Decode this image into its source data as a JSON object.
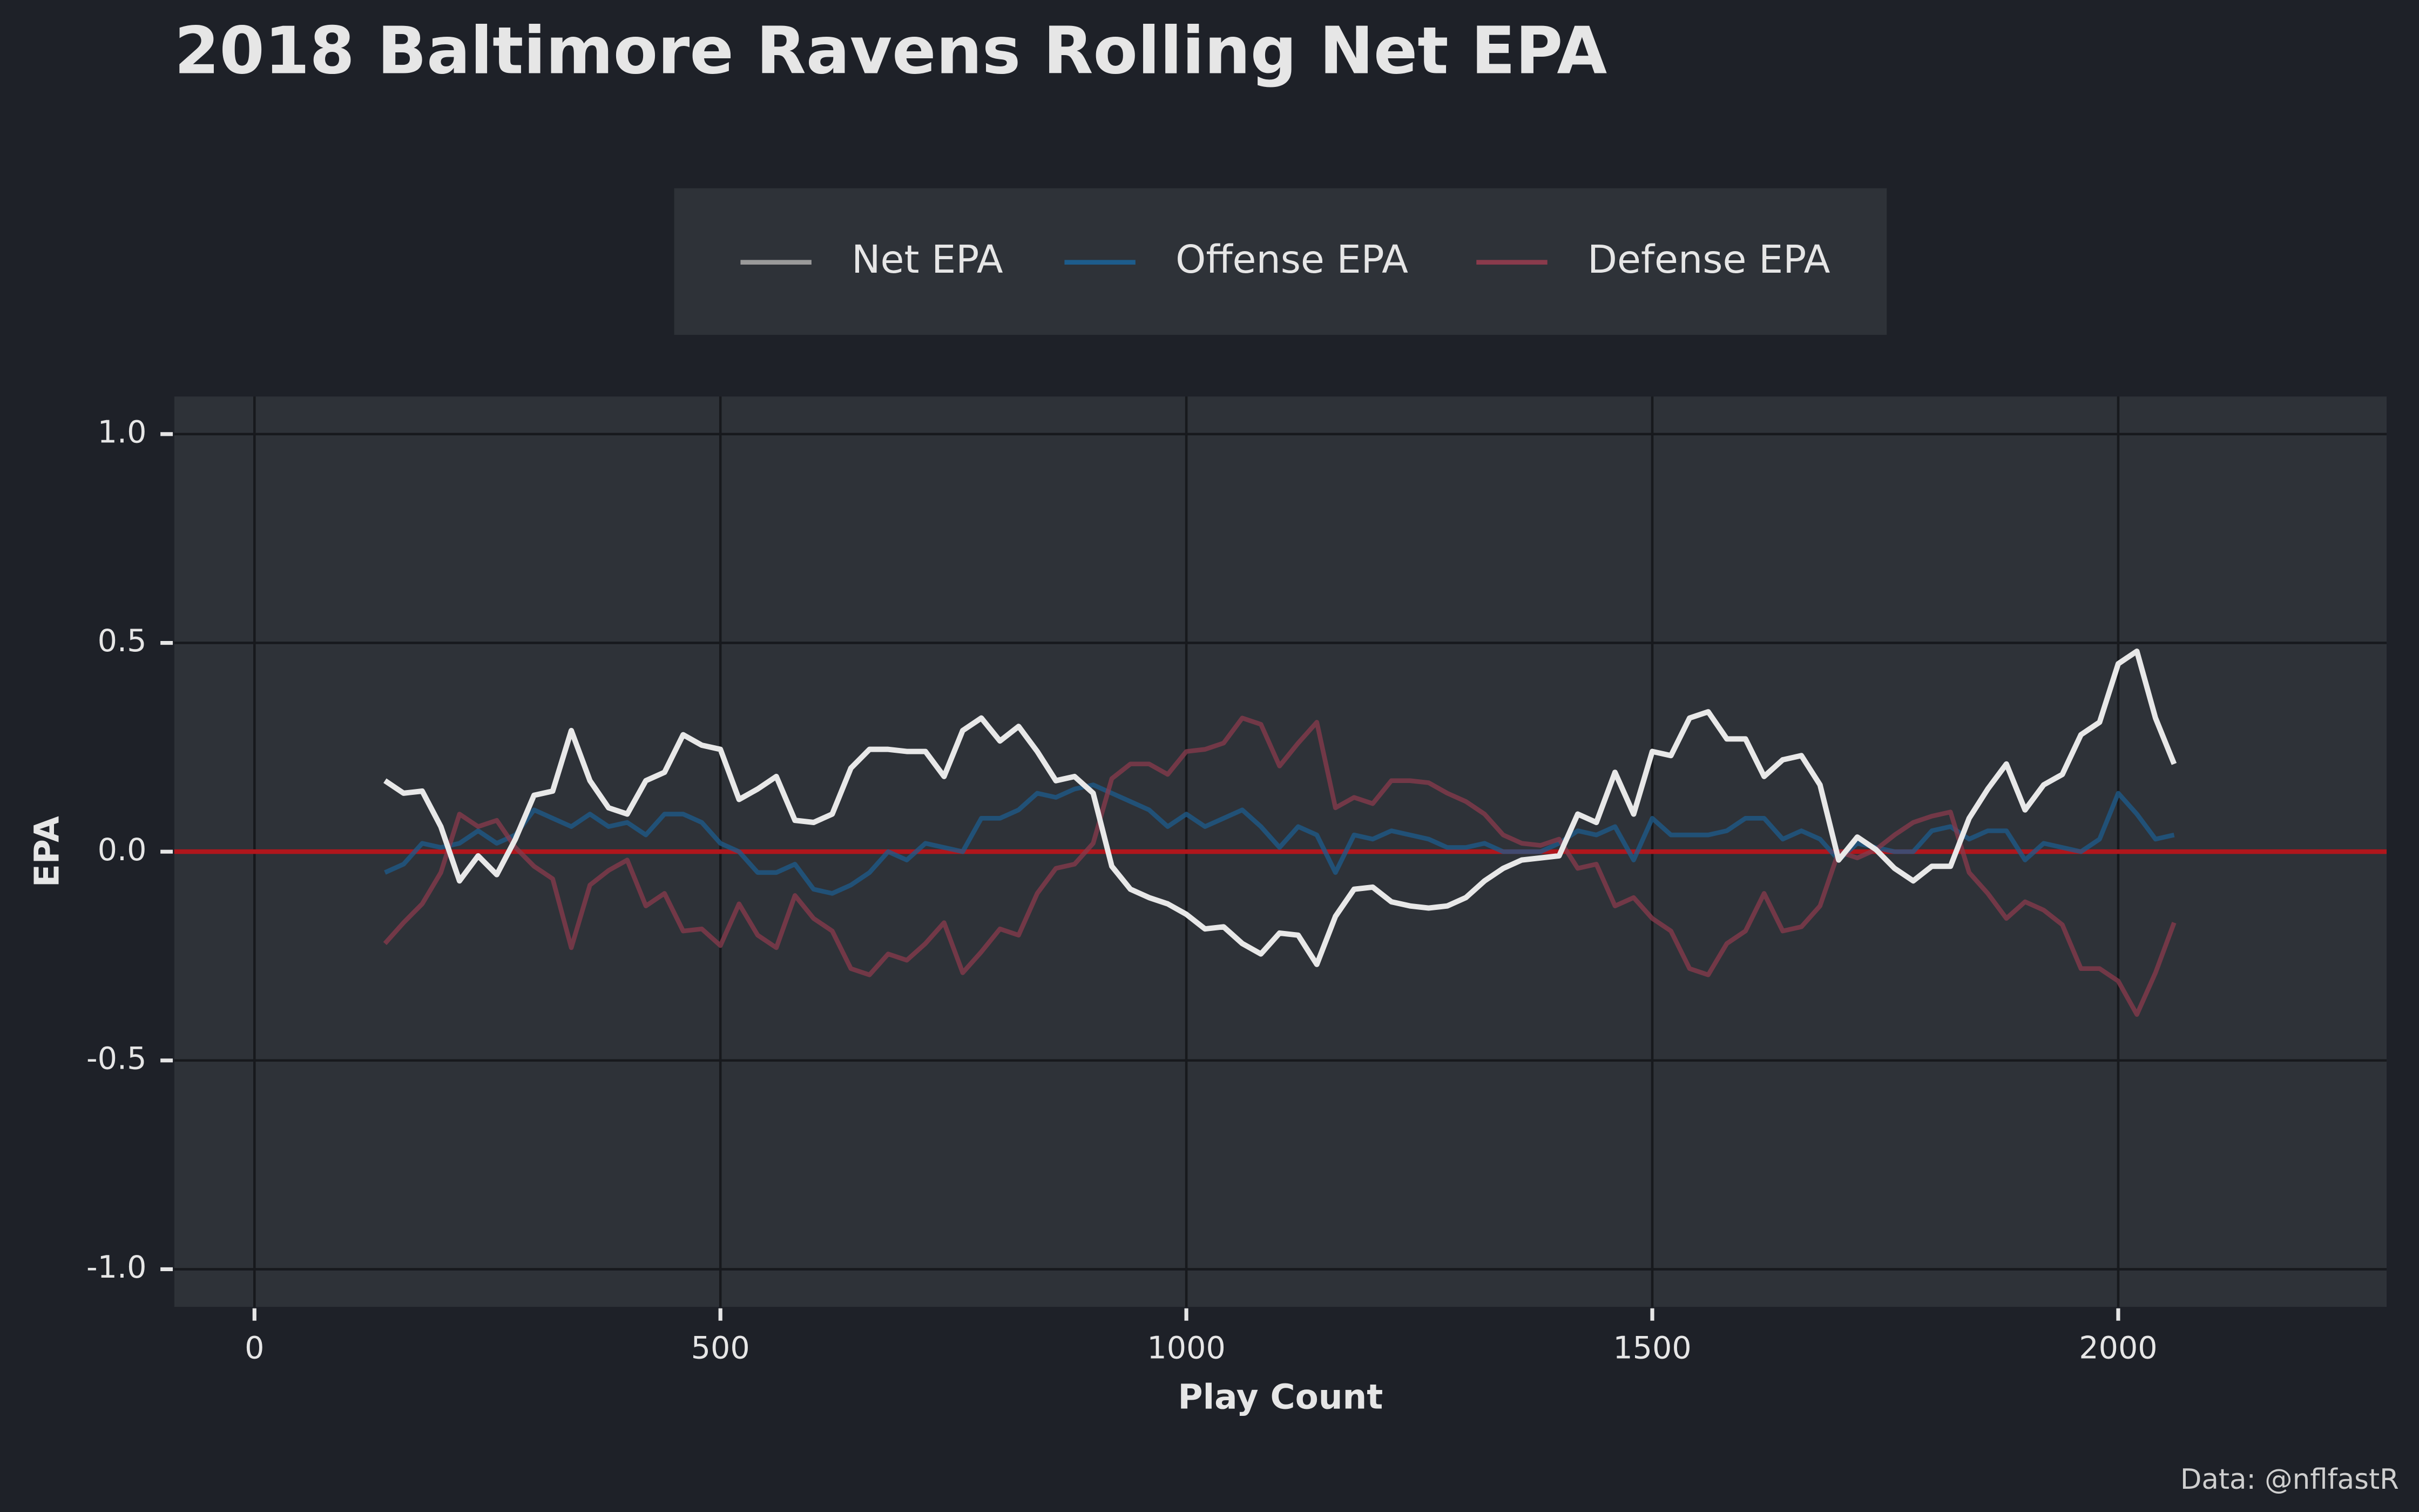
{
  "chart_data": {
    "type": "line",
    "title": "2018 Baltimore Ravens Rolling Net EPA",
    "xlabel": "Play Count",
    "ylabel": "EPA",
    "caption": "Data: @nflfastR",
    "grid": true,
    "legend": "top",
    "zero_line_color": "#b0161c",
    "xlim": [
      -86,
      2288
    ],
    "ylim": [
      -1.09,
      1.09
    ],
    "xticks": [
      0,
      500,
      1000,
      1500,
      2000
    ],
    "yticks": [
      {
        "value": -1,
        "label": "-1.0"
      },
      {
        "value": -0.5,
        "label": "-0.5"
      },
      {
        "value": 0,
        "label": "0.0"
      },
      {
        "value": 0.5,
        "label": "0.5"
      },
      {
        "value": 1,
        "label": "1.0"
      }
    ],
    "x": [
      140,
      160,
      180,
      200,
      220,
      240,
      260,
      280,
      300,
      320,
      340,
      360,
      380,
      400,
      420,
      440,
      460,
      480,
      500,
      520,
      540,
      560,
      580,
      600,
      620,
      640,
      660,
      680,
      700,
      720,
      740,
      760,
      780,
      800,
      820,
      840,
      860,
      880,
      900,
      920,
      940,
      960,
      980,
      1000,
      1020,
      1040,
      1060,
      1080,
      1100,
      1120,
      1140,
      1160,
      1180,
      1200,
      1220,
      1240,
      1260,
      1280,
      1300,
      1320,
      1340,
      1360,
      1380,
      1400,
      1420,
      1440,
      1460,
      1480,
      1500,
      1520,
      1540,
      1560,
      1580,
      1600,
      1620,
      1640,
      1660,
      1680,
      1700,
      1720,
      1740,
      1760,
      1780,
      1800,
      1820,
      1840,
      1860,
      1880,
      1900,
      1920,
      1940,
      1960,
      1980,
      2000,
      2020,
      2040,
      2060
    ],
    "series": [
      {
        "name": "Offense EPA",
        "color": "#1d5c8c",
        "values": [
          -0.05,
          -0.03,
          0.02,
          0.01,
          0.02,
          0.05,
          0.02,
          0.04,
          0.1,
          0.08,
          0.06,
          0.09,
          0.06,
          0.07,
          0.04,
          0.09,
          0.09,
          0.07,
          0.02,
          0,
          -0.05,
          -0.05,
          -0.03,
          -0.09,
          -0.1,
          -0.08,
          -0.05,
          0,
          -0.02,
          0.02,
          0.01,
          0,
          0.08,
          0.08,
          0.1,
          0.14,
          0.13,
          0.15,
          0.16,
          0.14,
          0.12,
          0.1,
          0.06,
          0.09,
          0.06,
          0.08,
          0.1,
          0.06,
          0.01,
          0.06,
          0.04,
          -0.05,
          0.04,
          0.03,
          0.05,
          0.04,
          0.03,
          0.01,
          0.01,
          0.02,
          0,
          0,
          0,
          0.02,
          0.05,
          0.04,
          0.06,
          -0.02,
          0.08,
          0.04,
          0.04,
          0.04,
          0.05,
          0.08,
          0.08,
          0.03,
          0.05,
          0.03,
          -0.02,
          0.02,
          0.01,
          0,
          0,
          0.05,
          0.06,
          0.03,
          0.05,
          0.05,
          -0.02,
          0.02,
          0.01,
          0,
          0.03,
          0.14,
          0.09,
          0.03,
          0.04
        ]
      },
      {
        "name": "Defense EPA",
        "color": "#8a3b4c",
        "values": [
          -0.22,
          -0.17,
          -0.125,
          -0.05,
          0.09,
          0.06,
          0.075,
          0.01,
          -0.035,
          -0.065,
          -0.23,
          -0.08,
          -0.045,
          -0.02,
          -0.13,
          -0.1,
          -0.19,
          -0.185,
          -0.225,
          -0.125,
          -0.2,
          -0.23,
          -0.105,
          -0.16,
          -0.19,
          -0.28,
          -0.295,
          -0.245,
          -0.26,
          -0.22,
          -0.17,
          -0.29,
          -0.24,
          -0.185,
          -0.2,
          -0.1,
          -0.04,
          -0.03,
          0.02,
          0.175,
          0.21,
          0.21,
          0.185,
          0.24,
          0.245,
          0.26,
          0.32,
          0.305,
          0.205,
          0.26,
          0.31,
          0.105,
          0.13,
          0.115,
          0.17,
          0.17,
          0.165,
          0.14,
          0.12,
          0.09,
          0.04,
          0.02,
          0.015,
          0.03,
          -0.04,
          -0.03,
          -0.13,
          -0.11,
          -0.16,
          -0.19,
          -0.28,
          -0.295,
          -0.22,
          -0.19,
          -0.1,
          -0.19,
          -0.18,
          -0.13,
          0,
          -0.015,
          0.005,
          0.04,
          0.07,
          0.085,
          0.095,
          -0.05,
          -0.1,
          -0.16,
          -0.12,
          -0.14,
          -0.175,
          -0.28,
          -0.28,
          -0.31,
          -0.39,
          -0.29,
          -0.17
        ]
      },
      {
        "name": "Net EPA",
        "color": "#e8e8e8",
        "values": [
          0.17,
          0.14,
          0.145,
          0.06,
          -0.07,
          -0.01,
          -0.055,
          0.03,
          0.135,
          0.145,
          0.29,
          0.17,
          0.105,
          0.09,
          0.17,
          0.19,
          0.28,
          0.255,
          0.245,
          0.125,
          0.15,
          0.18,
          0.075,
          0.07,
          0.09,
          0.2,
          0.245,
          0.245,
          0.24,
          0.24,
          0.18,
          0.29,
          0.32,
          0.265,
          0.3,
          0.24,
          0.17,
          0.18,
          0.14,
          -0.035,
          -0.09,
          -0.11,
          -0.125,
          -0.15,
          -0.185,
          -0.18,
          -0.22,
          -0.245,
          -0.195,
          -0.2,
          -0.27,
          -0.155,
          -0.09,
          -0.085,
          -0.12,
          -0.13,
          -0.135,
          -0.13,
          -0.11,
          -0.07,
          -0.04,
          -0.02,
          -0.015,
          -0.01,
          0.09,
          0.07,
          0.19,
          0.09,
          0.24,
          0.23,
          0.32,
          0.335,
          0.27,
          0.27,
          0.18,
          0.22,
          0.23,
          0.16,
          -0.02,
          0.035,
          0.005,
          -0.04,
          -0.07,
          -0.035,
          -0.035,
          0.08,
          0.15,
          0.21,
          0.1,
          0.16,
          0.185,
          0.28,
          0.31,
          0.45,
          0.48,
          0.32,
          0.21
        ]
      }
    ]
  }
}
